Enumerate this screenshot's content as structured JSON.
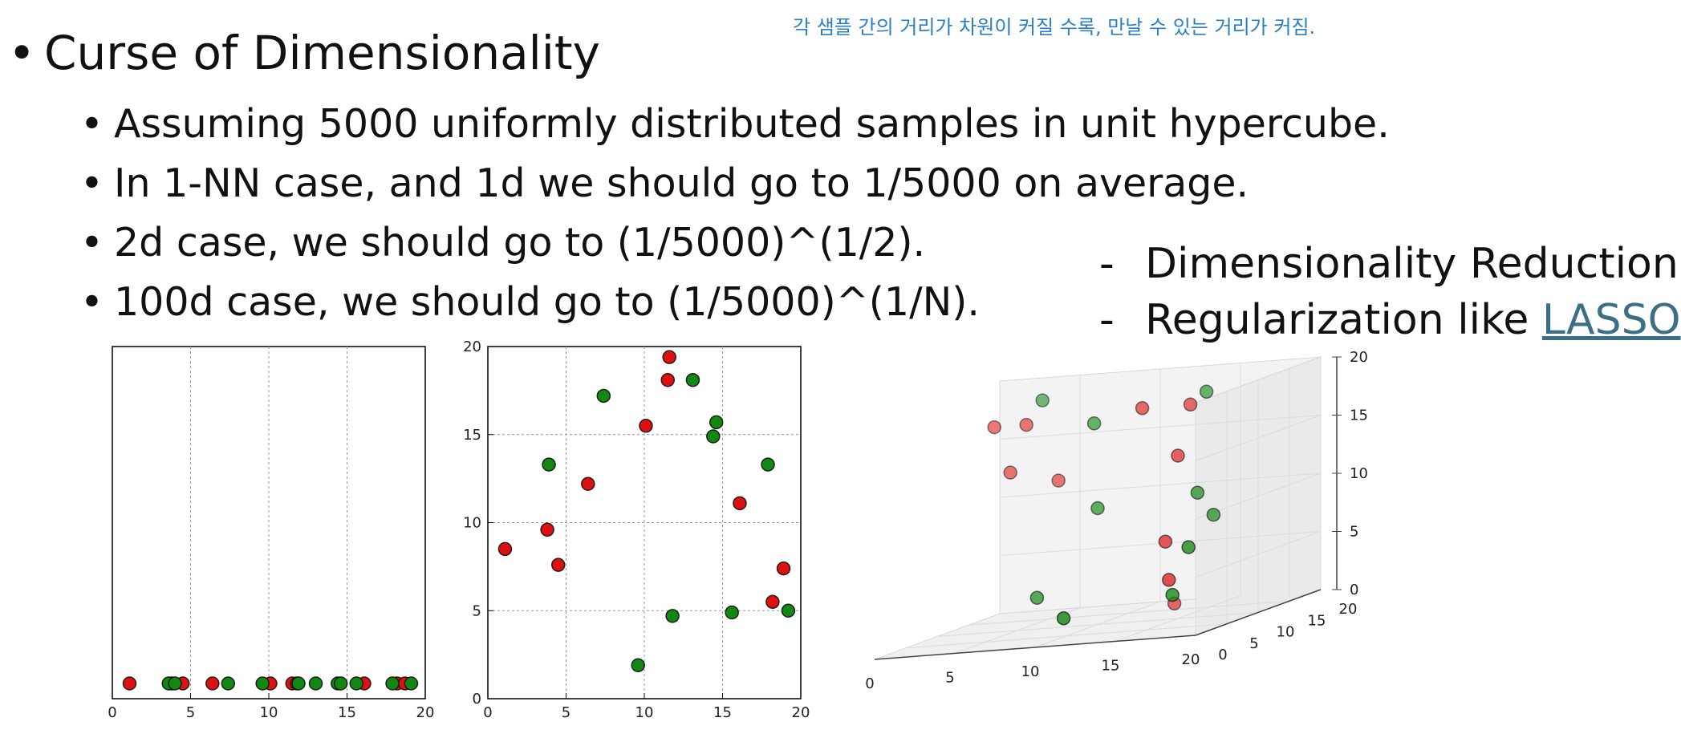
{
  "note": "각 샘플 간의 거리가 차원이 커질 수록, 만날 수 있는 거리가 커짐.",
  "title": "Curse of Dimensionality",
  "bullets": [
    "Assuming 5000 uniformly distributed samples in unit hypercube.",
    "In 1-NN case, and 1d we should go to 1/5000 on average.",
    "2d case, we should go to (1/5000)^(1/2).",
    "100d case, we should go to (1/5000)^(1/N)."
  ],
  "side_notes": {
    "item1": "Dimensionality Reduction.",
    "item2_prefix": "Regularization like ",
    "item2_link": "LASSO"
  },
  "colors": {
    "red": "#dd1111",
    "green": "#118811",
    "note_blue": "#2a7fc4",
    "link": "#3b6f86"
  },
  "chart_data": [
    {
      "type": "scatter",
      "xlim": [
        0,
        20
      ],
      "xticks": [
        "0",
        "5",
        "10",
        "15",
        "20"
      ],
      "grid": true,
      "series": [
        {
          "color": "red",
          "x": [
            1.1,
            3.8,
            4.5,
            6.4,
            10.1,
            11.5,
            11.8,
            16.1,
            18.2,
            18.7
          ]
        },
        {
          "color": "green",
          "x": [
            3.6,
            4.0,
            7.4,
            9.6,
            11.9,
            13.0,
            14.4,
            14.6,
            15.6,
            17.9,
            19.1
          ]
        }
      ]
    },
    {
      "type": "scatter",
      "xlim": [
        0,
        20
      ],
      "ylim": [
        0,
        20
      ],
      "xticks": [
        "0",
        "5",
        "10",
        "15",
        "20"
      ],
      "yticks": [
        "0",
        "5",
        "10",
        "15",
        "20"
      ],
      "grid": true,
      "series": [
        {
          "color": "red",
          "points": [
            [
              1.1,
              8.5
            ],
            [
              3.8,
              9.6
            ],
            [
              4.5,
              7.6
            ],
            [
              6.4,
              12.2
            ],
            [
              10.1,
              15.5
            ],
            [
              11.5,
              18.1
            ],
            [
              11.6,
              19.4
            ],
            [
              16.1,
              11.1
            ],
            [
              18.2,
              5.5
            ],
            [
              18.9,
              7.4
            ]
          ]
        },
        {
          "color": "green",
          "points": [
            [
              3.9,
              13.3
            ],
            [
              7.4,
              17.2
            ],
            [
              9.6,
              1.9
            ],
            [
              11.8,
              4.7
            ],
            [
              13.1,
              18.1
            ],
            [
              14.4,
              14.9
            ],
            [
              14.6,
              15.7
            ],
            [
              15.6,
              4.9
            ],
            [
              17.9,
              13.3
            ],
            [
              19.2,
              5.0
            ]
          ]
        }
      ]
    },
    {
      "type": "scatter",
      "projection": "3d",
      "xlim": [
        0,
        20
      ],
      "ylim": [
        0,
        20
      ],
      "zlim": [
        0,
        20
      ],
      "xticks": [
        "0",
        "5",
        "10",
        "15",
        "20"
      ],
      "yticks": [
        "0",
        "5",
        "10",
        "15",
        "20"
      ],
      "zticks": [
        "0",
        "5",
        "10",
        "15",
        "20"
      ],
      "grid": true,
      "series": [
        {
          "color": "red",
          "points": [
            [
              2,
              14,
              17
            ],
            [
              4,
              14,
              17
            ],
            [
              3,
              14,
              13
            ],
            [
              6,
              14,
              12
            ],
            [
              12,
              12,
              18
            ],
            [
              15,
              12,
              18
            ],
            [
              15,
              10,
              14
            ],
            [
              15,
              8,
              7
            ],
            [
              16,
              6,
              4
            ],
            [
              14,
              12,
              1
            ]
          ]
        },
        {
          "color": "green",
          "points": [
            [
              5,
              14,
              19
            ],
            [
              9,
              12,
              17
            ],
            [
              16,
              12,
              19
            ],
            [
              18,
              8,
              9
            ],
            [
              17,
              8,
              11
            ],
            [
              17,
              4,
              3
            ],
            [
              18,
              4,
              7
            ],
            [
              10,
              10,
              10
            ],
            [
              7,
              8,
              3
            ],
            [
              11,
              2,
              2
            ]
          ]
        }
      ]
    }
  ]
}
